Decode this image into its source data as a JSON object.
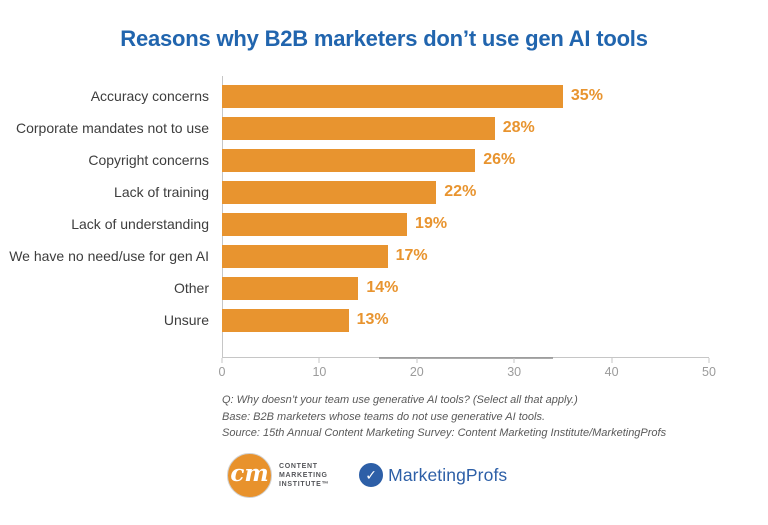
{
  "title": "Reasons why B2B marketers don’t use gen AI tools",
  "chart_data": {
    "type": "bar",
    "orientation": "horizontal",
    "title": "Reasons why B2B marketers don’t use gen AI tools",
    "categories": [
      "Accuracy concerns",
      "Corporate mandates not to use",
      "Copyright concerns",
      "Lack of training",
      "Lack of understanding",
      "We have no need/use for gen AI",
      "Other",
      "Unsure"
    ],
    "values": [
      35,
      28,
      26,
      22,
      19,
      17,
      14,
      13
    ],
    "value_labels": [
      "35%",
      "28%",
      "26%",
      "22%",
      "19%",
      "17%",
      "14%",
      "13%"
    ],
    "xlabel": "",
    "ylabel": "",
    "xlim": [
      0,
      50
    ],
    "x_ticks": [
      0,
      10,
      20,
      30,
      40,
      50
    ],
    "grid": false,
    "legend": "none",
    "bar_color": "#E8942F"
  },
  "footnotes": {
    "question": "Q: Why doesn’t your team use generative AI tools? (Select all that apply.)",
    "base": "Base: B2B marketers whose teams do not use generative AI tools.",
    "source": "Source: 15th Annual Content Marketing Survey: Content Marketing Institute/MarketingProfs"
  },
  "logos": {
    "cmi": {
      "monogram": "cm",
      "lines": [
        "CONTENT",
        "MARKETING",
        "INSTITUTE™"
      ]
    },
    "marketingprofs": {
      "icon_glyph": "✓",
      "name": "MarketingProfs"
    }
  },
  "colors": {
    "title_blue": "#2165AE",
    "bar_orange": "#E8942F",
    "category_label_gray": "#3D3D3D",
    "tick_gray": "#9B9B9B",
    "footnote_gray": "#595959",
    "cmi_orange": "#E8922C",
    "marketingprofs_blue": "#2D5FA7"
  }
}
